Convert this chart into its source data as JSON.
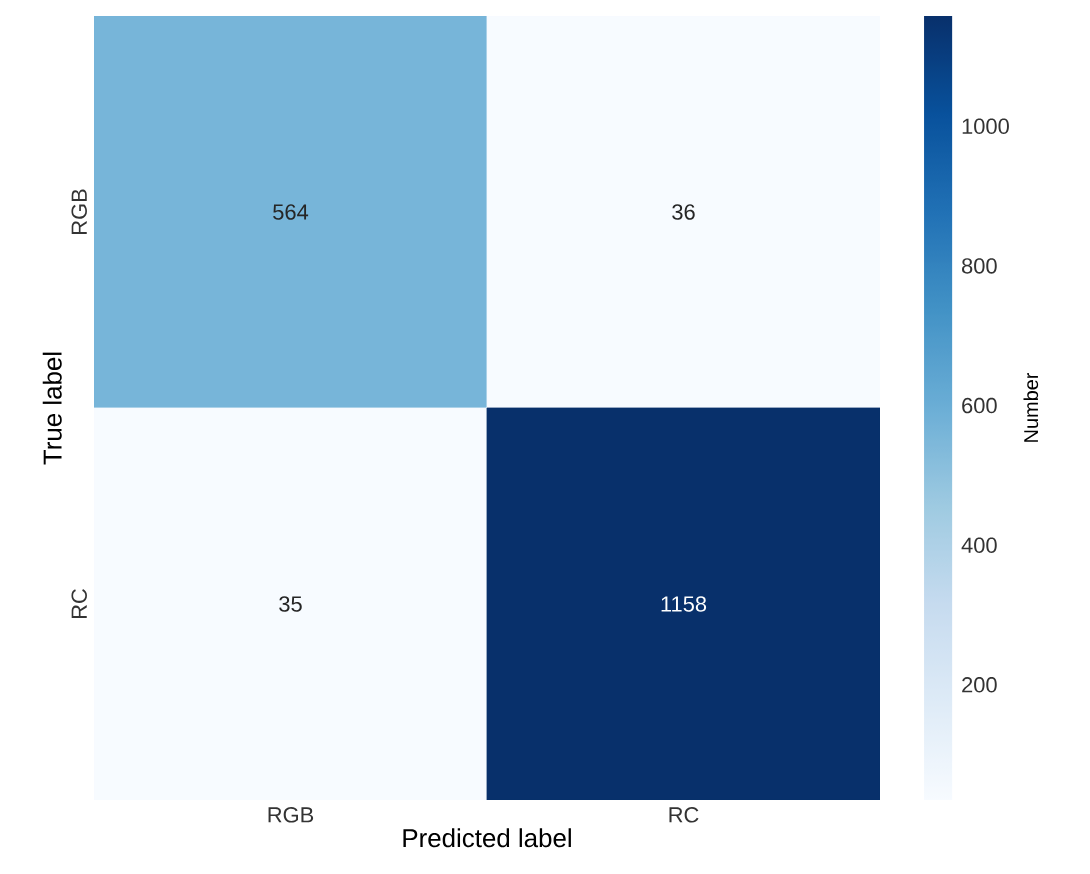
{
  "chart_data": {
    "type": "heatmap",
    "xlabel": "Predicted label",
    "ylabel": "True label",
    "clabel": "Number",
    "categories": [
      "RGB",
      "RC"
    ],
    "y_categories": [
      "RGB",
      "RC"
    ],
    "cells": [
      [
        564,
        36
      ],
      [
        35,
        1158
      ]
    ],
    "clim": [
      35,
      1158
    ],
    "cticks": [
      200,
      400,
      600,
      800,
      1000
    ],
    "data_labels": true
  }
}
